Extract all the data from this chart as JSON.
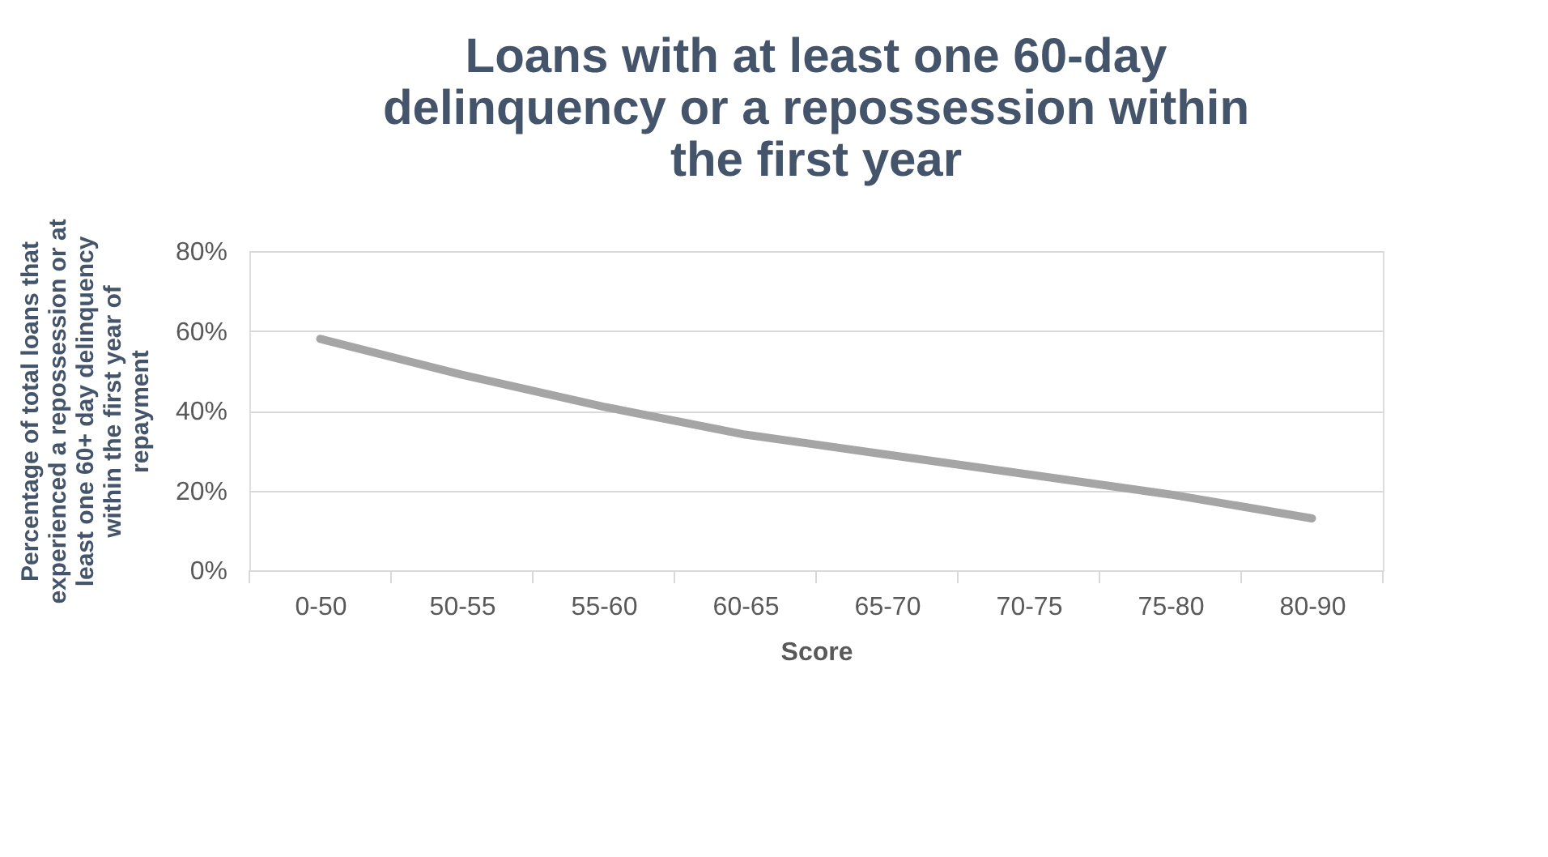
{
  "chart_data": {
    "type": "line",
    "title": "Loans with at least one 60-day delinquency or a repossession within the first year",
    "xlabel": "Score",
    "ylabel": "Percentage of total loans that experienced a repossession or at least one 60+ day delinquency within the first year of repayment",
    "categories": [
      "0-50",
      "50-55",
      "55-60",
      "60-65",
      "65-70",
      "70-75",
      "75-80",
      "80-90"
    ],
    "series": [
      {
        "color": "#a5a5a5",
        "values": [
          58,
          49,
          41,
          34,
          29,
          24,
          19,
          13
        ]
      }
    ],
    "ylim": [
      0,
      80
    ],
    "yticks": [
      {
        "value": 0,
        "label": "0%"
      },
      {
        "value": 20,
        "label": "20%"
      },
      {
        "value": 40,
        "label": "40%"
      },
      {
        "value": 60,
        "label": "60%"
      },
      {
        "value": 80,
        "label": "80%"
      }
    ],
    "grid": "y",
    "marker": "none",
    "line_style": "solid"
  }
}
